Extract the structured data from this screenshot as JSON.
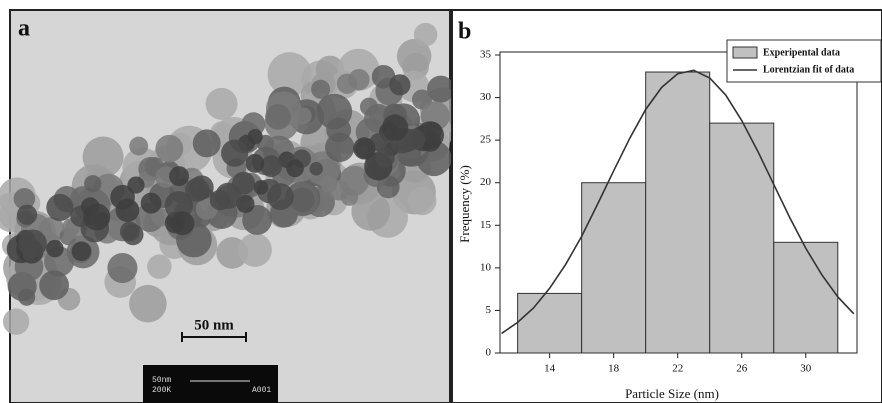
{
  "panel_a": {
    "label": "a",
    "scale_bar": "50 nm",
    "info": [
      "50nm",
      "200K",
      "A001"
    ]
  },
  "chart_data": {
    "type": "histogram",
    "label": "b",
    "x_label": "Particle Size (nm)",
    "y_label": "Frequency (%)",
    "bins": [
      12,
      16,
      20,
      24,
      28,
      32
    ],
    "values": [
      7,
      20,
      33,
      27,
      13
    ],
    "name": "Experipental data",
    "color": "#c0c0c0",
    "fit": {
      "name": "Lorentzian fit of data",
      "color": "#333333",
      "x": [
        11,
        12,
        13,
        14,
        15,
        16,
        17,
        18,
        19,
        20,
        21,
        22,
        23,
        24,
        25,
        26,
        27,
        28,
        29,
        30,
        31,
        32,
        33
      ],
      "values": [
        2.3,
        3.6,
        5.3,
        7.6,
        10.4,
        13.7,
        17.5,
        21.4,
        25.2,
        28.6,
        31.2,
        32.8,
        33.2,
        32.3,
        30.3,
        27.3,
        23.7,
        19.8,
        15.9,
        12.3,
        9.2,
        6.6,
        4.6
      ]
    },
    "xlim": [
      10.9,
      33.2
    ],
    "xticks": [
      14,
      18,
      22,
      26,
      30
    ],
    "ylim": [
      0,
      35
    ],
    "yticks": [
      0,
      5,
      10,
      15,
      20,
      25,
      30,
      35
    ],
    "legend": "upper right"
  }
}
